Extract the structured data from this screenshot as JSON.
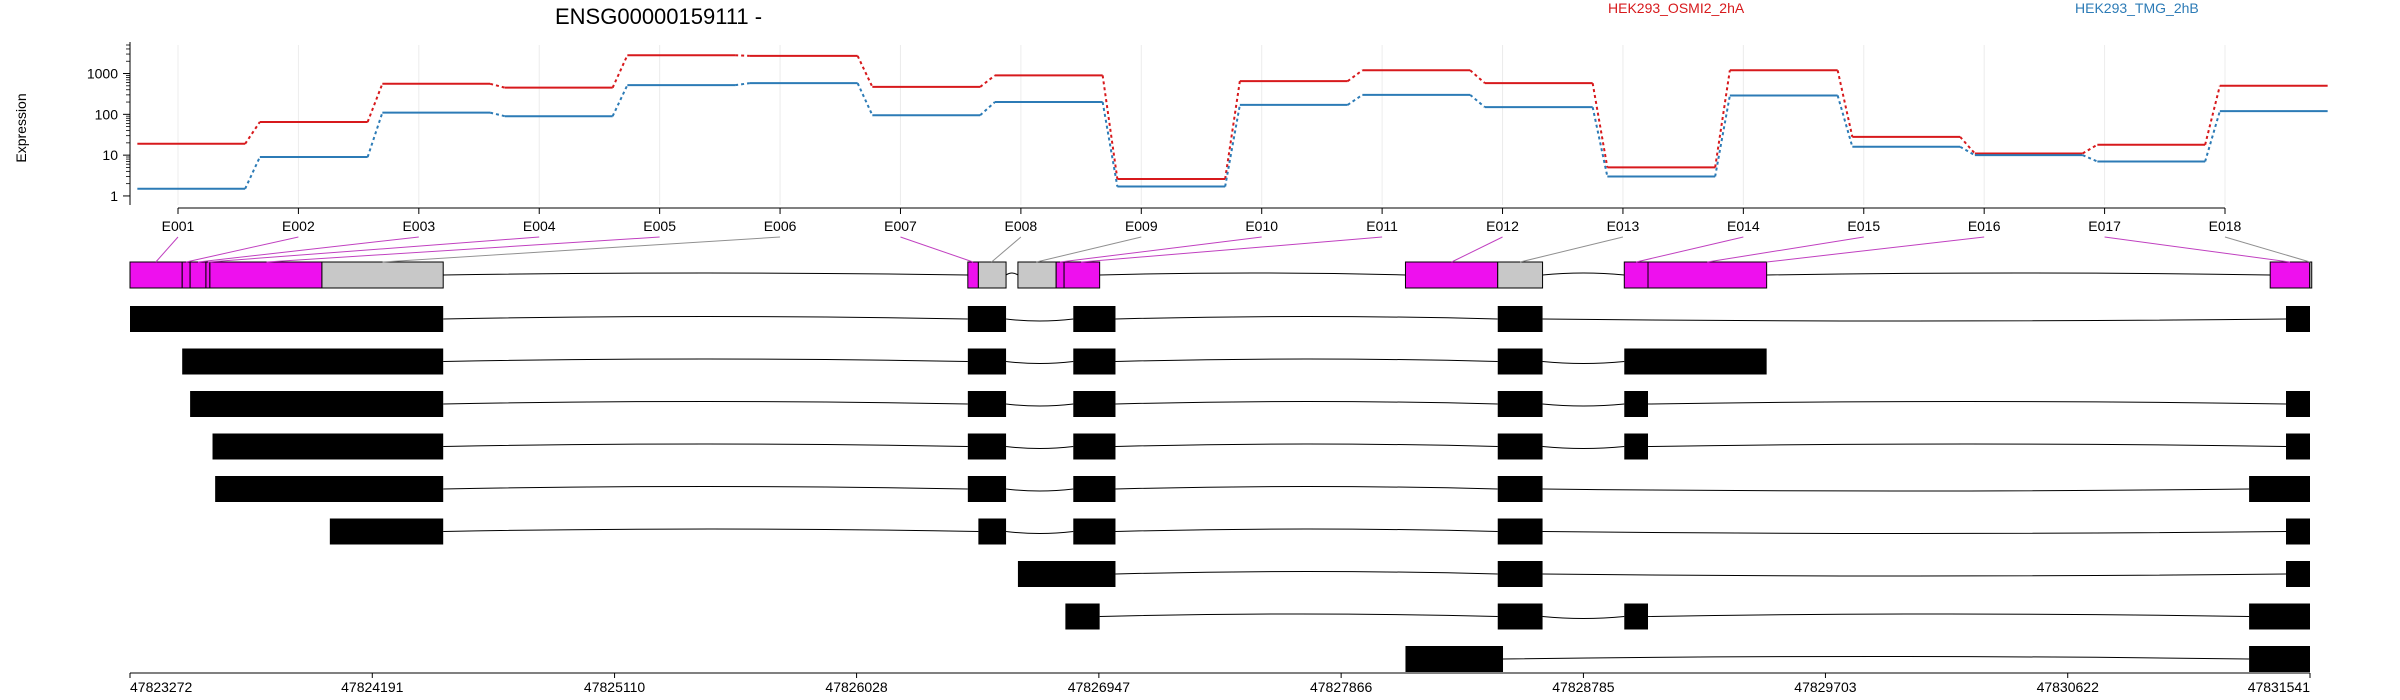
{
  "chart_data": {
    "type": "line",
    "title": "ENSG00000159111 -",
    "ylabel": "Expression",
    "yscale": "log",
    "ylim": [
      0.6,
      5000
    ],
    "yticks": [
      "1",
      "10",
      "100",
      "1000"
    ],
    "ytick_values": [
      1,
      10,
      100,
      1000
    ],
    "colors": {
      "s1": "#d7191c",
      "s2": "#2c7bb6",
      "exon": "#ee10ee",
      "exon_other": "#c8c8c8",
      "feature": "#000000"
    },
    "legend": [
      {
        "name": "HEK293_OSMI2_2hA",
        "color": "#d7191c"
      },
      {
        "name": "HEK293_TMG_2hB",
        "color": "#2c7bb6"
      }
    ],
    "categories": [
      "E001",
      "E002",
      "E003",
      "E004",
      "E005",
      "E006",
      "E007",
      "E008",
      "E009",
      "E010",
      "E011",
      "E012",
      "E013",
      "E014",
      "E015",
      "E016",
      "E017",
      "E018"
    ],
    "series": [
      {
        "name": "HEK293_OSMI2_2hA",
        "color": "#d7191c",
        "values": [
          19,
          65,
          560,
          450,
          2800,
          2700,
          470,
          900,
          2.6,
          650,
          1200,
          580,
          5,
          1200,
          28,
          11,
          18,
          500
        ]
      },
      {
        "name": "HEK293_TMG_2hB",
        "color": "#2c7bb6",
        "values": [
          1.5,
          9,
          110,
          90,
          520,
          580,
          95,
          200,
          1.7,
          170,
          300,
          150,
          3,
          290,
          16,
          10,
          7,
          120
        ]
      }
    ],
    "genomic_axis": {
      "start": 47823272,
      "end": 47831541,
      "ticks": [
        "47823272",
        "47824191",
        "47825110",
        "47826028",
        "47826947",
        "47827866",
        "47828785",
        "47829703",
        "47830622",
        "47831541"
      ],
      "tick_values": [
        47823272,
        47824191,
        47825110,
        47826028,
        47826947,
        47827866,
        47828785,
        47829703,
        47830622,
        47831541
      ]
    },
    "gene_model": {
      "exon_bins": [
        {
          "start": 47823272,
          "end": 47823470,
          "tested": true
        },
        {
          "start": 47823470,
          "end": 47823500,
          "tested": true
        },
        {
          "start": 47823500,
          "end": 47823560,
          "tested": true
        },
        {
          "start": 47823560,
          "end": 47823575,
          "tested": true
        },
        {
          "start": 47823575,
          "end": 47824000,
          "tested": true
        },
        {
          "start": 47824000,
          "end": 47824460,
          "tested": false
        },
        {
          "start": 47826450,
          "end": 47826490,
          "tested": true
        },
        {
          "start": 47826490,
          "end": 47826595,
          "tested": false
        },
        {
          "start": 47826640,
          "end": 47826785,
          "tested": false
        },
        {
          "start": 47826785,
          "end": 47826815,
          "tested": true
        },
        {
          "start": 47826815,
          "end": 47826950,
          "tested": true
        },
        {
          "start": 47828110,
          "end": 47828460,
          "tested": true
        },
        {
          "start": 47828460,
          "end": 47828630,
          "tested": false
        },
        {
          "start": 47828940,
          "end": 47829030,
          "tested": true
        },
        {
          "start": 47829030,
          "end": 47829480,
          "tested": true
        },
        {
          "start": 47831390,
          "end": 47831540,
          "tested": true
        },
        {
          "start": 47831540,
          "end": 47831541,
          "tested": false
        }
      ],
      "connectors": [
        {
          "category": "E001",
          "genomic": 47823370,
          "color": "#c040c0"
        },
        {
          "category": "E002",
          "genomic": 47823485,
          "color": "#c040c0"
        },
        {
          "category": "E003",
          "genomic": 47823530,
          "color": "#c040c0"
        },
        {
          "category": "E004",
          "genomic": 47823568,
          "color": "#c040c0"
        },
        {
          "category": "E005",
          "genomic": 47823790,
          "color": "#c040c0"
        },
        {
          "category": "E006",
          "genomic": 47824230,
          "color": "#909090"
        },
        {
          "category": "E007",
          "genomic": 47826470,
          "color": "#c040c0"
        },
        {
          "category": "E008",
          "genomic": 47826540,
          "color": "#909090"
        },
        {
          "category": "E009",
          "genomic": 47826710,
          "color": "#909090"
        },
        {
          "category": "E010",
          "genomic": 47826800,
          "color": "#c040c0"
        },
        {
          "category": "E011",
          "genomic": 47826880,
          "color": "#c040c0"
        },
        {
          "category": "E012",
          "genomic": 47828285,
          "color": "#c040c0"
        },
        {
          "category": "E013",
          "genomic": 47828545,
          "color": "#909090"
        },
        {
          "category": "E014",
          "genomic": 47828985,
          "color": "#c040c0"
        },
        {
          "category": "E015",
          "genomic": 47829255,
          "color": "#c040c0"
        },
        {
          "category": "E016",
          "genomic": 47829480,
          "color": "#c040c0"
        },
        {
          "category": "E017",
          "genomic": 47831465,
          "color": "#c040c0"
        },
        {
          "category": "E018",
          "genomic": 47831541,
          "color": "#909090"
        }
      ]
    },
    "transcripts": [
      [
        [
          47823272,
          47824460
        ],
        [
          47826450,
          47826595
        ],
        [
          47826850,
          47827010
        ],
        [
          47828460,
          47828630
        ],
        [
          47831450,
          47831541
        ]
      ],
      [
        [
          47823470,
          47824460
        ],
        [
          47826450,
          47826595
        ],
        [
          47826850,
          47827010
        ],
        [
          47828460,
          47828630
        ],
        [
          47828940,
          47829480
        ]
      ],
      [
        [
          47823500,
          47824460
        ],
        [
          47826450,
          47826595
        ],
        [
          47826850,
          47827010
        ],
        [
          47828460,
          47828630
        ],
        [
          47828940,
          47829030
        ],
        [
          47831450,
          47831541
        ]
      ],
      [
        [
          47823585,
          47824460
        ],
        [
          47826450,
          47826595
        ],
        [
          47826850,
          47827010
        ],
        [
          47828460,
          47828630
        ],
        [
          47828940,
          47829030
        ],
        [
          47831450,
          47831541
        ]
      ],
      [
        [
          47823595,
          47824460
        ],
        [
          47826450,
          47826595
        ],
        [
          47826850,
          47827010
        ],
        [
          47828460,
          47828630
        ],
        [
          47831310,
          47831541
        ]
      ],
      [
        [
          47824030,
          47824460
        ],
        [
          47826490,
          47826595
        ],
        [
          47826850,
          47827010
        ],
        [
          47828460,
          47828630
        ],
        [
          47831450,
          47831541
        ]
      ],
      [
        [
          47826640,
          47827010
        ],
        [
          47828460,
          47828630
        ],
        [
          47831450,
          47831541
        ]
      ],
      [
        [
          47826820,
          47826950
        ],
        [
          47828460,
          47828630
        ],
        [
          47828940,
          47829030
        ],
        [
          47831310,
          47831541
        ]
      ],
      [
        [
          47828110,
          47828480
        ],
        [
          47831310,
          47831541
        ]
      ]
    ]
  }
}
